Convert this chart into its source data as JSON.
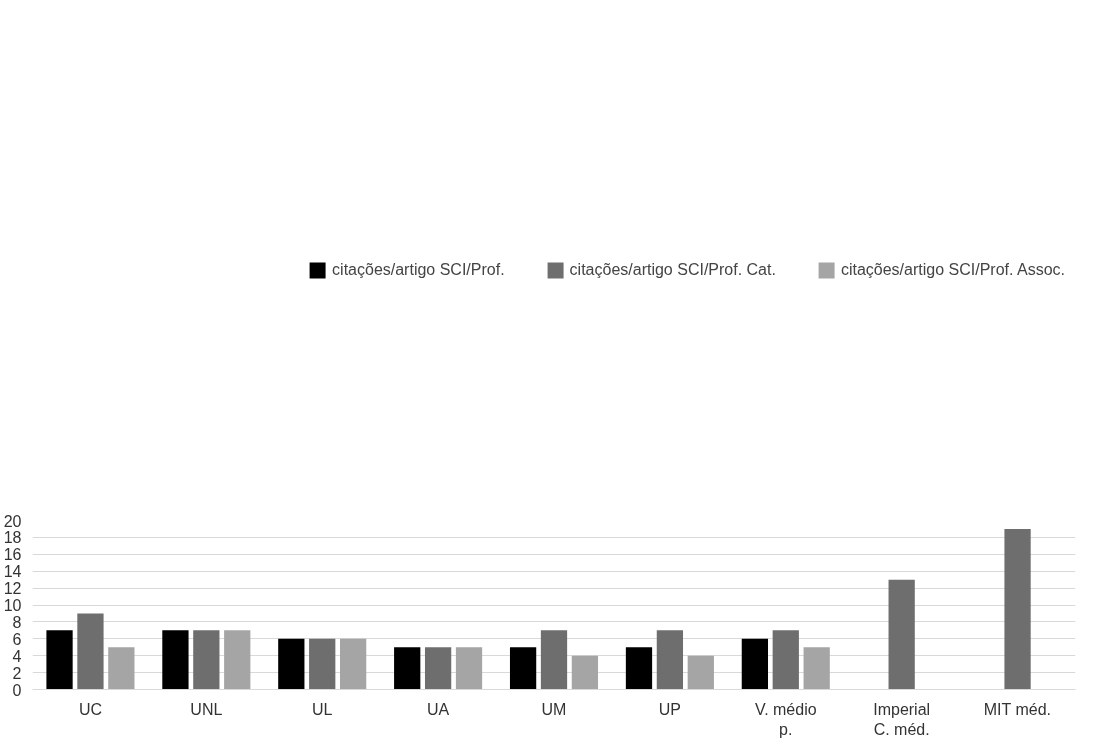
{
  "chart_data": {
    "type": "bar",
    "categories": [
      "UC",
      "UNL",
      "UL",
      "UA",
      "UM",
      "UP",
      "V. médio p.",
      "Imperial C. méd.",
      "MIT méd."
    ],
    "series": [
      {
        "name": "citações/artigo SCI/Prof.",
        "color": "#000000",
        "values": [
          7,
          7,
          6,
          5,
          5,
          5,
          6,
          null,
          null
        ]
      },
      {
        "name": "citações/artigo SCI/Prof. Cat.",
        "color": "#6e6e6e",
        "values": [
          9,
          7,
          6,
          5,
          7,
          7,
          7,
          13,
          19
        ]
      },
      {
        "name": "citações/artigo SCI/Prof. Assoc.",
        "color": "#a5a5a5",
        "values": [
          5,
          7,
          6,
          5,
          4,
          4,
          5,
          null,
          null
        ]
      }
    ],
    "ylim": [
      0,
      20
    ],
    "yticks": [
      0,
      2,
      4,
      6,
      8,
      10,
      12,
      14,
      16,
      18,
      20
    ],
    "grid": "y",
    "legend": "top"
  }
}
